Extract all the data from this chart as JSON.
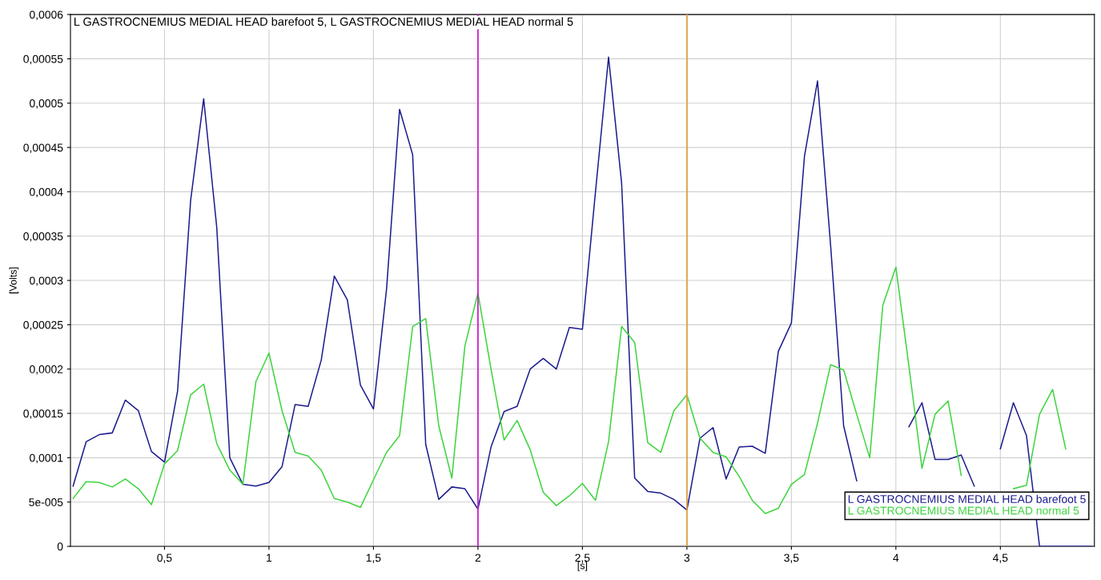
{
  "chart_data": {
    "type": "line",
    "title": "L GASTROCNEMIUS MEDIAL HEAD barefoot 5, L GASTROCNEMIUS MEDIAL HEAD normal 5",
    "xlabel": "[s]",
    "ylabel": "[Volts]",
    "x": [
      0.0625,
      0.125,
      0.1875,
      0.25,
      0.3125,
      0.375,
      0.4375,
      0.5,
      0.5625,
      0.625,
      0.6875,
      0.75,
      0.8125,
      0.875,
      0.9375,
      1.0,
      1.0625,
      1.125,
      1.1875,
      1.25,
      1.3125,
      1.375,
      1.4375,
      1.5,
      1.5625,
      1.625,
      1.6875,
      1.75,
      1.8125,
      1.875,
      1.9375,
      2.0,
      2.0625,
      2.125,
      2.1875,
      2.25,
      2.3125,
      2.375,
      2.4375,
      2.5,
      2.5625,
      2.625,
      2.6875,
      2.75,
      2.8125,
      2.875,
      2.9375,
      3.0,
      3.0625,
      3.125,
      3.1875,
      3.25,
      3.3125,
      3.375,
      3.4375,
      3.5,
      3.5625,
      3.625,
      3.6875,
      3.75,
      3.8125,
      3.875,
      3.9375,
      4.0,
      4.0625,
      4.125,
      4.1875,
      4.25,
      4.3125,
      4.375,
      4.4375,
      4.5,
      4.5625,
      4.625,
      4.6875,
      4.75,
      4.8125,
      4.875,
      4.9375
    ],
    "series": [
      {
        "name": "L GASTROCNEMIUS MEDIAL HEAD barefoot 5",
        "color": "#1c1c8e",
        "values": [
          6.8e-05,
          0.000118,
          0.000126,
          0.000128,
          0.000165,
          0.000153,
          0.000107,
          9.5e-05,
          0.000175,
          0.00039,
          0.000505,
          0.00036,
          0.0001,
          7e-05,
          6.8e-05,
          7.2e-05,
          9e-05,
          0.00016,
          0.000158,
          0.00021,
          0.000305,
          0.000278,
          0.000182,
          0.000155,
          0.00029,
          0.000493,
          0.000442,
          0.000115,
          5.3e-05,
          6.7e-05,
          6.5e-05,
          4.2e-05,
          0.000112,
          0.000152,
          0.000158,
          0.0002,
          0.000212,
          0.0002,
          0.000247,
          0.000245,
          0.0004,
          0.000552,
          0.00041,
          7.7e-05,
          6.2e-05,
          6e-05,
          5.3e-05,
          4.1e-05,
          0.000122,
          0.000134,
          7.6e-05,
          0.000112,
          0.000113,
          0.000105,
          0.00022,
          0.000252,
          0.00044,
          0.000525,
          0.00034,
          0.000136,
          7.4e-05,
          null,
          null,
          null,
          0.000135,
          0.000162,
          9.8e-05,
          9.8e-05,
          0.000103,
          6.8e-05,
          null,
          0.00011,
          0.000162,
          0.000125,
          0.0,
          0.0,
          0.0,
          0.0,
          0.0
        ]
      },
      {
        "name": "L GASTROCNEMIUS MEDIAL HEAD normal 5",
        "color": "#3fd43f",
        "values": [
          5.4e-05,
          7.3e-05,
          7.2e-05,
          6.7e-05,
          7.6e-05,
          6.5e-05,
          4.7e-05,
          9.3e-05,
          0.000108,
          0.000171,
          0.000183,
          0.000116,
          8.6e-05,
          7e-05,
          0.000186,
          0.000218,
          0.000153,
          0.000106,
          0.000102,
          8.6e-05,
          5.4e-05,
          5e-05,
          4.4e-05,
          7.5e-05,
          0.000106,
          0.000125,
          0.000248,
          0.000257,
          0.000136,
          7.7e-05,
          0.000226,
          0.000286,
          0.0002,
          0.00012,
          0.000142,
          0.000109,
          6.1e-05,
          4.6e-05,
          5.7e-05,
          7.1e-05,
          5.2e-05,
          0.000118,
          0.000248,
          0.00023,
          0.000117,
          0.000106,
          0.000153,
          0.000171,
          0.000122,
          0.000106,
          0.000101,
          7.9e-05,
          5.2e-05,
          3.7e-05,
          4.3e-05,
          7e-05,
          8.1e-05,
          0.000139,
          0.000205,
          0.000199,
          0.000149,
          0.0001,
          0.000272,
          0.000315,
          0.000203,
          8.8e-05,
          0.000149,
          0.000164,
          8e-05,
          null,
          null,
          null,
          6.5e-05,
          6.9e-05,
          0.000149,
          0.000177,
          0.00011,
          null,
          null
        ]
      }
    ],
    "xlim": [
      0.05,
      4.95
    ],
    "xticks": [
      {
        "value": 0.5,
        "label": "0,5"
      },
      1,
      {
        "value": 1.5,
        "label": "1,5"
      },
      2,
      {
        "value": 2.5,
        "label": "2,5"
      },
      3,
      {
        "value": 3.5,
        "label": "3,5"
      },
      4,
      {
        "value": 4.5,
        "label": "4,5"
      }
    ],
    "ylim": [
      0,
      0.0006
    ],
    "yticks": [
      0,
      {
        "value": 5e-05,
        "label": "5e-005"
      },
      {
        "value": 0.0001,
        "label": "0,0001"
      },
      {
        "value": 0.00015,
        "label": "0,00015"
      },
      {
        "value": 0.0002,
        "label": "0,0002"
      },
      {
        "value": 0.00025,
        "label": "0,00025"
      },
      {
        "value": 0.0003,
        "label": "0,0003"
      },
      {
        "value": 0.00035,
        "label": "0,00035"
      },
      {
        "value": 0.0004,
        "label": "0,0004"
      },
      {
        "value": 0.00045,
        "label": "0,00045"
      },
      {
        "value": 0.0005,
        "label": "0,0005"
      },
      {
        "value": 0.00055,
        "label": "0,00055"
      },
      {
        "value": 0.0006,
        "label": "0,0006"
      }
    ],
    "ref_lines": [
      {
        "axis": "x",
        "value": 2,
        "color": "#cc22cc"
      },
      {
        "axis": "x",
        "value": 3,
        "color": "#e0a040"
      }
    ],
    "grid": true,
    "legend": "bottom right",
    "marker": "none",
    "line_style": "solid"
  }
}
